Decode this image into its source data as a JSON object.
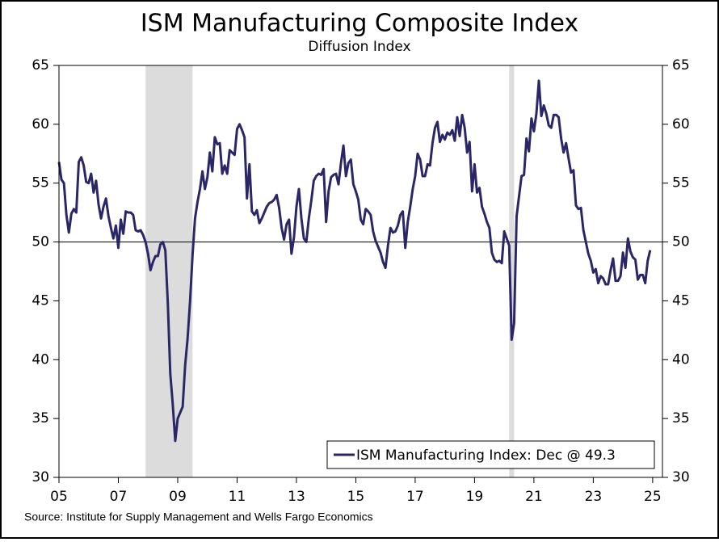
{
  "chart_data": {
    "type": "line",
    "title": "ISM Manufacturing Composite Index",
    "subtitle": "Diffusion Index",
    "source": "Source: Institute for Supply Management and Wells Fargo Economics",
    "xlim": [
      2005,
      2025.33
    ],
    "xticks": [
      {
        "value": 2005,
        "label": "05"
      },
      {
        "value": 2007,
        "label": "07"
      },
      {
        "value": 2009,
        "label": "09"
      },
      {
        "value": 2011,
        "label": "11"
      },
      {
        "value": 2013,
        "label": "13"
      },
      {
        "value": 2015,
        "label": "15"
      },
      {
        "value": 2017,
        "label": "17"
      },
      {
        "value": 2019,
        "label": "19"
      },
      {
        "value": 2021,
        "label": "21"
      },
      {
        "value": 2023,
        "label": "23"
      },
      {
        "value": 2025,
        "label": "25"
      }
    ],
    "ylim": [
      30,
      65
    ],
    "yticks": [
      30,
      35,
      40,
      45,
      50,
      55,
      60,
      65
    ],
    "reference_line": 50,
    "shaded_regions": [
      {
        "x0": 2007.917,
        "x1": 2009.5
      },
      {
        "x0": 2020.167,
        "x1": 2020.333
      }
    ],
    "legend": "lower right",
    "x": [
      2005,
      2005.083,
      2005.167,
      2005.25,
      2005.333,
      2005.417,
      2005.5,
      2005.583,
      2005.667,
      2005.75,
      2005.833,
      2005.917,
      2006,
      2006.083,
      2006.167,
      2006.25,
      2006.333,
      2006.417,
      2006.5,
      2006.583,
      2006.667,
      2006.75,
      2006.833,
      2006.917,
      2007,
      2007.083,
      2007.167,
      2007.25,
      2007.333,
      2007.417,
      2007.5,
      2007.583,
      2007.667,
      2007.75,
      2007.833,
      2007.917,
      2008,
      2008.083,
      2008.167,
      2008.25,
      2008.333,
      2008.417,
      2008.5,
      2008.583,
      2008.667,
      2008.75,
      2008.833,
      2008.917,
      2009,
      2009.083,
      2009.167,
      2009.25,
      2009.333,
      2009.417,
      2009.5,
      2009.583,
      2009.667,
      2009.75,
      2009.833,
      2009.917,
      2010,
      2010.083,
      2010.167,
      2010.25,
      2010.333,
      2010.417,
      2010.5,
      2010.583,
      2010.667,
      2010.75,
      2010.833,
      2010.917,
      2011,
      2011.083,
      2011.167,
      2011.25,
      2011.333,
      2011.417,
      2011.5,
      2011.583,
      2011.667,
      2011.75,
      2011.833,
      2011.917,
      2012,
      2012.083,
      2012.167,
      2012.25,
      2012.333,
      2012.417,
      2012.5,
      2012.583,
      2012.667,
      2012.75,
      2012.833,
      2012.917,
      2013,
      2013.083,
      2013.167,
      2013.25,
      2013.333,
      2013.417,
      2013.5,
      2013.583,
      2013.667,
      2013.75,
      2013.833,
      2013.917,
      2014,
      2014.083,
      2014.167,
      2014.25,
      2014.333,
      2014.417,
      2014.5,
      2014.583,
      2014.667,
      2014.75,
      2014.833,
      2014.917,
      2015,
      2015.083,
      2015.167,
      2015.25,
      2015.333,
      2015.417,
      2015.5,
      2015.583,
      2015.667,
      2015.75,
      2015.833,
      2015.917,
      2016,
      2016.083,
      2016.167,
      2016.25,
      2016.333,
      2016.417,
      2016.5,
      2016.583,
      2016.667,
      2016.75,
      2016.833,
      2016.917,
      2017,
      2017.083,
      2017.167,
      2017.25,
      2017.333,
      2017.417,
      2017.5,
      2017.583,
      2017.667,
      2017.75,
      2017.833,
      2017.917,
      2018,
      2018.083,
      2018.167,
      2018.25,
      2018.333,
      2018.417,
      2018.5,
      2018.583,
      2018.667,
      2018.75,
      2018.833,
      2018.917,
      2019,
      2019.083,
      2019.167,
      2019.25,
      2019.333,
      2019.417,
      2019.5,
      2019.583,
      2019.667,
      2019.75,
      2019.833,
      2019.917,
      2020,
      2020.083,
      2020.167,
      2020.25,
      2020.333,
      2020.417,
      2020.5,
      2020.583,
      2020.667,
      2020.75,
      2020.833,
      2020.917,
      2021,
      2021.083,
      2021.167,
      2021.25,
      2021.333,
      2021.417,
      2021.5,
      2021.583,
      2021.667,
      2021.75,
      2021.833,
      2021.917,
      2022,
      2022.083,
      2022.167,
      2022.25,
      2022.333,
      2022.417,
      2022.5,
      2022.583,
      2022.667,
      2022.75,
      2022.833,
      2022.917,
      2023,
      2023.083,
      2023.167,
      2023.25,
      2023.333,
      2023.417,
      2023.5,
      2023.583,
      2023.667,
      2023.75,
      2023.833,
      2023.917,
      2024,
      2024.083,
      2024.167,
      2024.25,
      2024.333,
      2024.417,
      2024.5,
      2024.583,
      2024.667,
      2024.75,
      2024.833,
      2024.917
    ],
    "series": [
      {
        "name": "ISM Manufacturing Index: Dec @ 49.3",
        "color": "#2b2766",
        "values": [
          56.8,
          55.3,
          55.0,
          52.3,
          50.8,
          52.4,
          52.8,
          52.5,
          56.8,
          57.2,
          56.5,
          55.1,
          55.0,
          55.8,
          54.2,
          55.2,
          53.2,
          52.0,
          53.0,
          53.7,
          52.2,
          51.2,
          50.3,
          51.4,
          49.5,
          51.9,
          50.7,
          52.6,
          52.5,
          52.5,
          52.3,
          51.0,
          50.9,
          51.0,
          50.6,
          50.0,
          49.0,
          47.6,
          48.3,
          48.8,
          48.8,
          49.8,
          50.0,
          49.3,
          44.8,
          38.8,
          36.2,
          33.1,
          35.0,
          35.5,
          36.0,
          39.5,
          41.8,
          45.0,
          48.9,
          52.0,
          53.4,
          54.5,
          56.0,
          54.5,
          55.5,
          57.6,
          56.0,
          58.9,
          58.3,
          58.4,
          55.8,
          56.5,
          55.8,
          57.8,
          57.6,
          57.4,
          59.6,
          60.0,
          59.5,
          58.9,
          53.7,
          56.6,
          52.6,
          52.3,
          52.7,
          51.6,
          52.0,
          52.5,
          53.0,
          53.3,
          53.4,
          53.6,
          54.0,
          52.9,
          51.2,
          50.2,
          51.5,
          51.9,
          49.0,
          50.4,
          53.0,
          54.5,
          52.0,
          50.3,
          50.0,
          52.0,
          53.5,
          55.2,
          55.6,
          55.8,
          55.7,
          56.2,
          51.7,
          54.3,
          55.5,
          55.7,
          55.8,
          54.9,
          56.7,
          58.2,
          55.6,
          56.7,
          57.0,
          54.9,
          54.3,
          53.6,
          51.9,
          51.5,
          52.8,
          52.6,
          52.3,
          50.9,
          50.1,
          49.6,
          49.1,
          48.3,
          47.8,
          49.7,
          51.2,
          50.8,
          50.9,
          51.4,
          52.3,
          52.6,
          49.5,
          51.7,
          53.0,
          54.5,
          55.6,
          57.5,
          57.0,
          55.6,
          55.6,
          56.6,
          56.5,
          58.4,
          59.7,
          60.2,
          58.5,
          59.1,
          58.7,
          59.3,
          59.1,
          59.5,
          58.6,
          60.6,
          59.0,
          60.8,
          59.7,
          57.6,
          58.5,
          54.3,
          56.6,
          54.2,
          54.6,
          53.0,
          52.4,
          51.7,
          51.2,
          49.1,
          48.5,
          48.3,
          48.4,
          48.2,
          50.9,
          50.3,
          49.7,
          41.7,
          43.1,
          52.2,
          53.9,
          55.6,
          55.7,
          58.8,
          57.7,
          60.5,
          59.4,
          60.9,
          63.7,
          60.7,
          61.6,
          60.9,
          59.9,
          59.7,
          60.8,
          60.8,
          60.6,
          58.8,
          57.6,
          58.4,
          57.1,
          55.9,
          56.1,
          53.1,
          52.8,
          52.9,
          51.0,
          50.0,
          49.0,
          48.4,
          47.4,
          47.7,
          46.5,
          47.1,
          46.9,
          46.4,
          46.4,
          47.6,
          48.6,
          46.7,
          46.7,
          47.1,
          49.1,
          47.8,
          50.3,
          49.2,
          48.7,
          48.5,
          46.8,
          47.2,
          47.2,
          46.5,
          48.4,
          49.3
        ]
      }
    ]
  }
}
